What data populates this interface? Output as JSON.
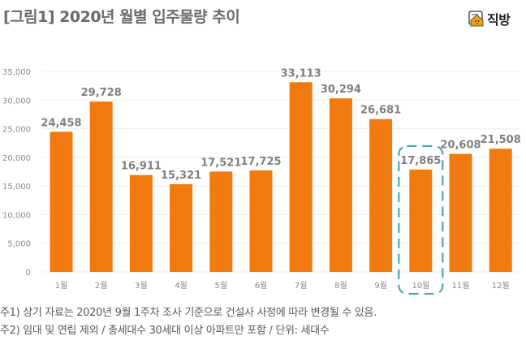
{
  "header": {
    "title": "[그림1] 2020년 월별 입주물량 추이",
    "logo_text": "직방",
    "logo_icon": "house-face-icon"
  },
  "chart_data": {
    "type": "bar",
    "title": "[그림1] 2020년 월별 입주물량 추이",
    "xlabel": "",
    "ylabel": "",
    "categories": [
      "1월",
      "2월",
      "3월",
      "4월",
      "5월",
      "6월",
      "7월",
      "8월",
      "9월",
      "10월",
      "11월",
      "12월"
    ],
    "values": [
      24458,
      29728,
      16911,
      15321,
      17521,
      17725,
      33113,
      30294,
      26681,
      17865,
      20608,
      21508
    ],
    "value_labels": [
      "24,458",
      "29,728",
      "16,911",
      "15,321",
      "17,521",
      "17,725",
      "33,113",
      "30,294",
      "26,681",
      "17,865",
      "20,608",
      "21,508"
    ],
    "ylim": [
      0,
      35000
    ],
    "yticks": [
      0,
      5000,
      10000,
      15000,
      20000,
      25000,
      30000,
      35000
    ],
    "ytick_labels": [
      "0",
      "5,000",
      "10,000",
      "15,000",
      "20,000",
      "25,000",
      "30,000",
      "35,000"
    ],
    "grid": true,
    "highlight_category": "10월",
    "colors": {
      "bar": "#f07a10",
      "highlight_box": "#4aa8b0",
      "label": "#7f7f7f",
      "grid": "#ececec"
    }
  },
  "notes": [
    "주1) 상기 자료는 2020년 9월 1주차 조사 기준으로 건설사 사정에 따라 변경될 수 있음.",
    "주2) 임대 및 연립 제외 / 총세대수 30세대 이상 아파트만 포함 / 단위: 세대수"
  ]
}
